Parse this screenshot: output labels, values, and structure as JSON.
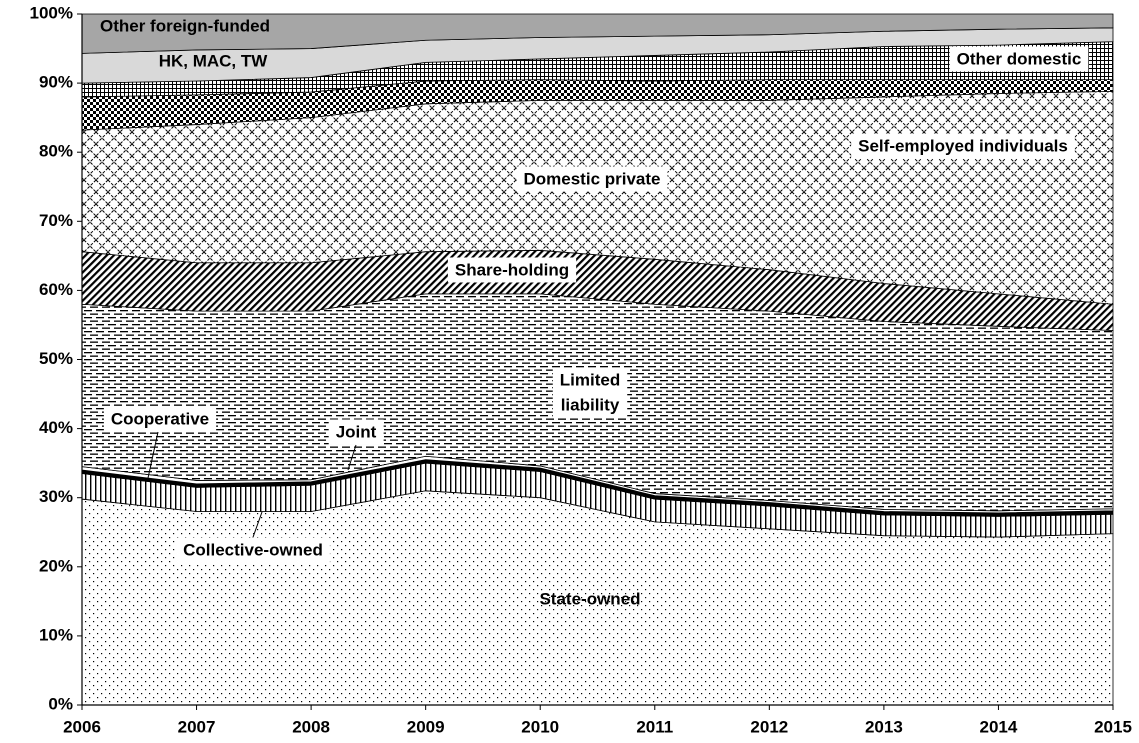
{
  "chart_data": {
    "type": "stacked_area",
    "categories": [
      "2006",
      "2007",
      "2008",
      "2009",
      "2010",
      "2011",
      "2012",
      "2013",
      "2014",
      "2015"
    ],
    "ylim": [
      0,
      100
    ],
    "yticks": [
      {
        "value": 0,
        "label": "0%"
      },
      {
        "value": 10,
        "label": "10%"
      },
      {
        "value": 20,
        "label": "20%"
      },
      {
        "value": 30,
        "label": "30%"
      },
      {
        "value": 40,
        "label": "40%"
      },
      {
        "value": 50,
        "label": "50%"
      },
      {
        "value": 60,
        "label": "60%"
      },
      {
        "value": 70,
        "label": "70%"
      },
      {
        "value": 80,
        "label": "80%"
      },
      {
        "value": 90,
        "label": "90%"
      },
      {
        "value": 100,
        "label": "100%"
      }
    ],
    "series": [
      {
        "name": "State-owned",
        "pattern": "dots",
        "color": "#000000",
        "values": [
          29.8,
          28,
          28,
          31,
          30,
          26.5,
          25.5,
          24.5,
          24.3,
          24.8
        ]
      },
      {
        "name": "Collective-owned",
        "pattern": "vertical",
        "color": "#000000",
        "values": [
          3.7,
          3.5,
          3.8,
          4,
          3.8,
          3.3,
          3.3,
          3,
          3,
          2.8
        ]
      },
      {
        "name": "Cooperative",
        "pattern": "solid",
        "color": "#000000",
        "values": [
          0.5,
          0.5,
          0.5,
          0.5,
          0.5,
          0.5,
          0.5,
          0.5,
          0.5,
          0.5
        ]
      },
      {
        "name": "Joint",
        "pattern": "solid",
        "color": "#ffffff",
        "values": [
          0.5,
          0.5,
          0.3,
          0.5,
          0.3,
          0.3,
          0.3,
          0.3,
          0.3,
          0.3
        ]
      },
      {
        "name": "Limited liability",
        "pattern": "dashes",
        "color": "#000000",
        "values": [
          23.5,
          24.5,
          24.4,
          23.5,
          24.9,
          27.4,
          27.4,
          27.2,
          26.7,
          25.8
        ]
      },
      {
        "name": "Share-holding",
        "pattern": "diagonal",
        "color": "#000000",
        "values": [
          7.6,
          7,
          7,
          6.1,
          6.3,
          6.5,
          6,
          5.5,
          4.7,
          3.8
        ]
      },
      {
        "name": "Domestic private",
        "pattern": "crosshatch",
        "color": "#000000",
        "values": [
          17.6,
          20,
          21,
          21.4,
          21.7,
          23,
          24.5,
          27,
          29,
          30.8
        ]
      },
      {
        "name": "Self-employed individuals",
        "pattern": "checker",
        "color": "#000000",
        "values": [
          4.8,
          4.3,
          3.7,
          3.3,
          3,
          2.8,
          3,
          2.5,
          2,
          1.7
        ]
      },
      {
        "name": "Other domestic",
        "pattern": "grid",
        "color": "#000000",
        "values": [
          2,
          2,
          2.1,
          2.7,
          3,
          3.7,
          4,
          4.8,
          5,
          5.5
        ]
      },
      {
        "name": "HK, MAC, TW",
        "pattern": "solid",
        "color": "#d9d9d9",
        "values": [
          4.3,
          4.5,
          4.2,
          3.2,
          3.1,
          2.8,
          2.5,
          2.2,
          2.3,
          2
        ]
      },
      {
        "name": "Other foreign-funded",
        "pattern": "solid",
        "color": "#a6a6a6",
        "values": [
          5.7,
          5.2,
          5,
          3.8,
          3.4,
          3.2,
          3,
          2.5,
          2.2,
          2
        ]
      }
    ]
  }
}
